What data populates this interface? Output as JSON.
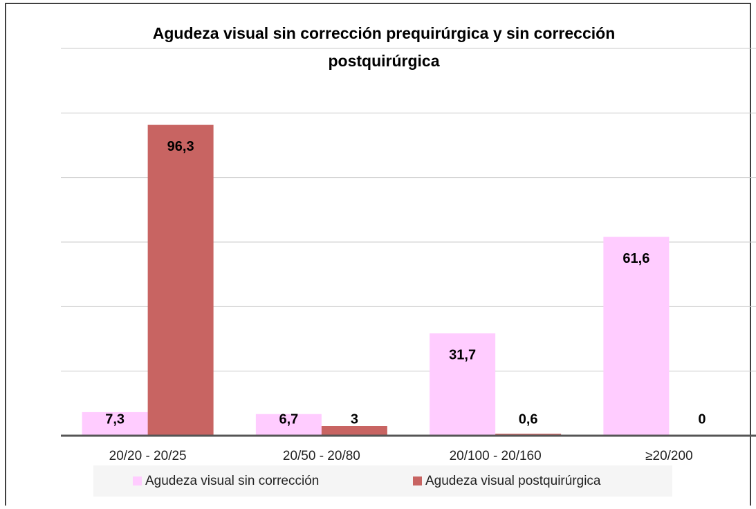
{
  "chart_data": {
    "type": "bar",
    "title": "Agudeza visual sin corrección prequirúrgica y sin corrección postquirúrgica",
    "categories": [
      "20/20 - 20/25",
      "20/50 - 20/80",
      "20/100 - 20/160",
      "≥20/200"
    ],
    "series": [
      {
        "name": "Agudeza visual sin corrección",
        "color": "#ffccff",
        "values": [
          7.3,
          6.7,
          31.7,
          61.6
        ],
        "value_labels": [
          "7,3",
          "6,7",
          "31,7",
          "61,6"
        ]
      },
      {
        "name": "Agudeza visual postquirúrgica",
        "color": "#c86462",
        "values": [
          96.3,
          3,
          0.6,
          0
        ],
        "value_labels": [
          "96,3",
          "3",
          "0,6",
          "0"
        ]
      }
    ],
    "ylim": [
      0,
      120
    ],
    "yticks": [
      0,
      20,
      40,
      60,
      80,
      100,
      120
    ],
    "grid": true,
    "legend": "bottom"
  }
}
